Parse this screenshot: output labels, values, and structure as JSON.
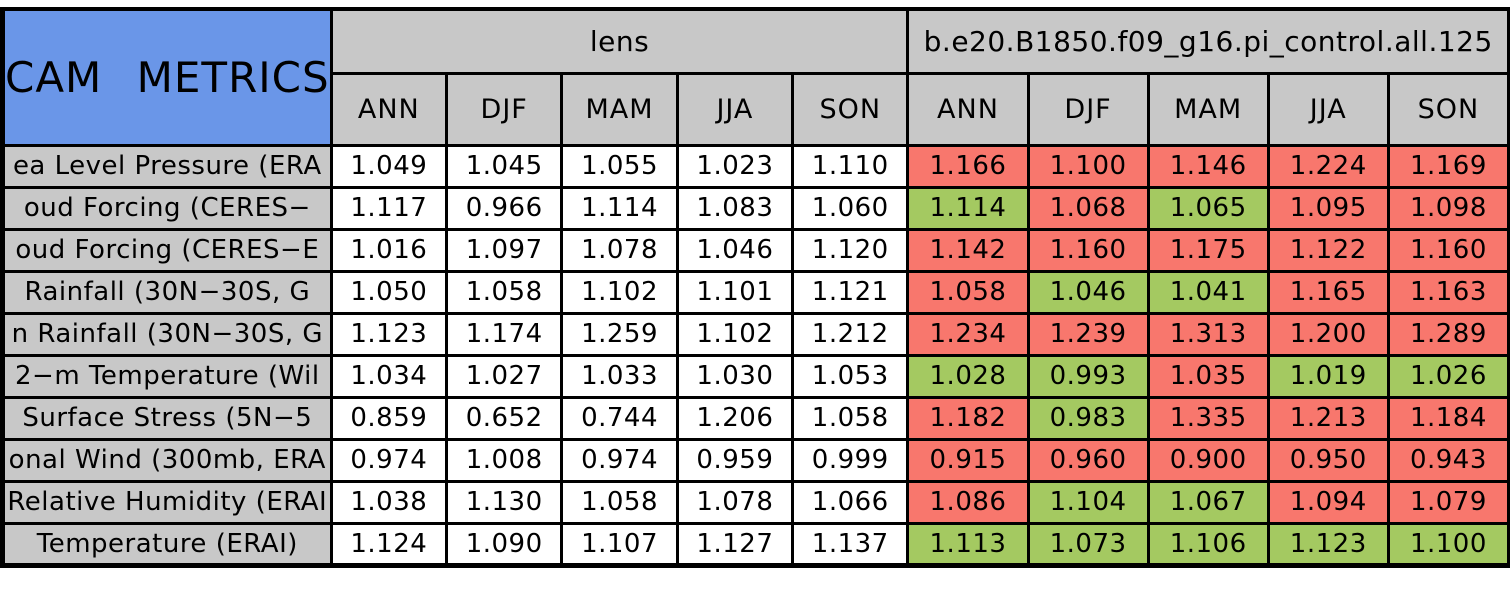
{
  "chart_data": {
    "type": "table",
    "title": "CAM METRICS",
    "column_groups": [
      "lens",
      "b.e20.B1850.f09_g16.pi_control.all.125"
    ],
    "seasons": [
      "ANN",
      "DJF",
      "MAM",
      "JJA",
      "SON"
    ],
    "colors": {
      "red": "#F8776D",
      "green": "#A4C961",
      "header_bg": "#C8C8C8",
      "corner_bg": "#6A96E8",
      "cell_bg": "#FFFFFF",
      "border": "#000000"
    },
    "rows": [
      {
        "label": "ea Level Pressure (ERA",
        "lens": [
          "1.049",
          "1.045",
          "1.055",
          "1.023",
          "1.110"
        ],
        "control": [
          "1.166",
          "1.100",
          "1.146",
          "1.224",
          "1.169"
        ],
        "control_colors": [
          "red",
          "red",
          "red",
          "red",
          "red"
        ]
      },
      {
        "label": "oud Forcing (CERES−",
        "lens": [
          "1.117",
          "0.966",
          "1.114",
          "1.083",
          "1.060"
        ],
        "control": [
          "1.114",
          "1.068",
          "1.065",
          "1.095",
          "1.098"
        ],
        "control_colors": [
          "green",
          "red",
          "green",
          "red",
          "red"
        ]
      },
      {
        "label": "oud Forcing (CERES−E",
        "lens": [
          "1.016",
          "1.097",
          "1.078",
          "1.046",
          "1.120"
        ],
        "control": [
          "1.142",
          "1.160",
          "1.175",
          "1.122",
          "1.160"
        ],
        "control_colors": [
          "red",
          "red",
          "red",
          "red",
          "red"
        ]
      },
      {
        "label": "Rainfall (30N−30S, G",
        "lens": [
          "1.050",
          "1.058",
          "1.102",
          "1.101",
          "1.121"
        ],
        "control": [
          "1.058",
          "1.046",
          "1.041",
          "1.165",
          "1.163"
        ],
        "control_colors": [
          "red",
          "green",
          "green",
          "red",
          "red"
        ]
      },
      {
        "label": "n Rainfall (30N−30S, G",
        "lens": [
          "1.123",
          "1.174",
          "1.259",
          "1.102",
          "1.212"
        ],
        "control": [
          "1.234",
          "1.239",
          "1.313",
          "1.200",
          "1.289"
        ],
        "control_colors": [
          "red",
          "red",
          "red",
          "red",
          "red"
        ]
      },
      {
        "label": "2−m Temperature (Wil",
        "lens": [
          "1.034",
          "1.027",
          "1.033",
          "1.030",
          "1.053"
        ],
        "control": [
          "1.028",
          "0.993",
          "1.035",
          "1.019",
          "1.026"
        ],
        "control_colors": [
          "green",
          "green",
          "red",
          "green",
          "green"
        ]
      },
      {
        "label": "Surface Stress (5N−5",
        "lens": [
          "0.859",
          "0.652",
          "0.744",
          "1.206",
          "1.058"
        ],
        "control": [
          "1.182",
          "0.983",
          "1.335",
          "1.213",
          "1.184"
        ],
        "control_colors": [
          "red",
          "green",
          "red",
          "red",
          "red"
        ]
      },
      {
        "label": "onal Wind (300mb, ERA",
        "lens": [
          "0.974",
          "1.008",
          "0.974",
          "0.959",
          "0.999"
        ],
        "control": [
          "0.915",
          "0.960",
          "0.900",
          "0.950",
          "0.943"
        ],
        "control_colors": [
          "red",
          "red",
          "red",
          "red",
          "red"
        ]
      },
      {
        "label": "Relative Humidity (ERAI",
        "lens": [
          "1.038",
          "1.130",
          "1.058",
          "1.078",
          "1.066"
        ],
        "control": [
          "1.086",
          "1.104",
          "1.067",
          "1.094",
          "1.079"
        ],
        "control_colors": [
          "red",
          "green",
          "green",
          "red",
          "red"
        ]
      },
      {
        "label": "Temperature (ERAI)",
        "lens": [
          "1.124",
          "1.090",
          "1.107",
          "1.127",
          "1.137"
        ],
        "control": [
          "1.113",
          "1.073",
          "1.106",
          "1.123",
          "1.100"
        ],
        "control_colors": [
          "green",
          "green",
          "green",
          "green",
          "green"
        ]
      }
    ]
  }
}
